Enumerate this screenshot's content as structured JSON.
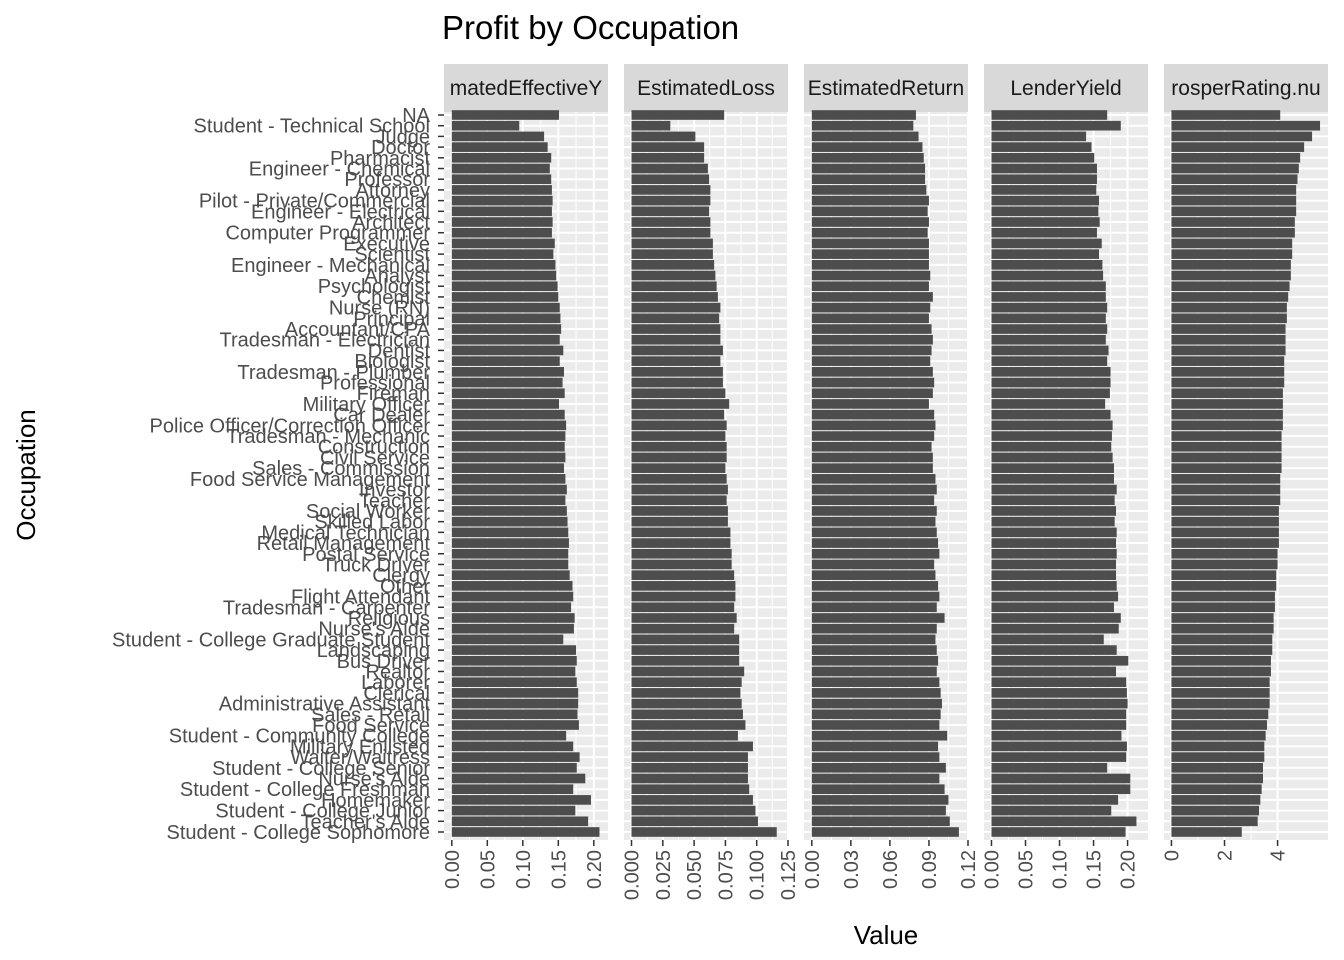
{
  "chart_data": {
    "type": "bar",
    "orientation": "horizontal",
    "title": "Profit by Occupation",
    "xlabel": "Value",
    "ylabel": "Occupation",
    "bar_color": "#4d4d4d",
    "panel_bg": "#ebebeb",
    "strip_bg": "#d9d9d9",
    "grid": true,
    "legend": "none",
    "categories": [
      "NA",
      "Student - Technical School",
      "Judge",
      "Doctor",
      "Pharmacist",
      "Engineer - Chemical",
      "Professor",
      "Attorney",
      "Pilot - Private/Commercial",
      "Engineer - Electrical",
      "Architect",
      "Computer Programmer",
      "Executive",
      "Scientist",
      "Engineer - Mechanical",
      "Analyst",
      "Psychologist",
      "Chemist",
      "Nurse (RN)",
      "Principal",
      "Accountant/CPA",
      "Tradesman - Electrician",
      "Dentist",
      "Biologist",
      "Tradesman - Plumber",
      "Professional",
      "Fireman",
      "Military Officer",
      "Car Dealer",
      "Police Officer/Correction Officer",
      "Tradesman - Mechanic",
      "Construction",
      "Civil Service",
      "Sales - Commission",
      "Food Service Management",
      "Investor",
      "Teacher",
      "Social Worker",
      "Skilled Labor",
      "Medical Technician",
      "Retail Management",
      "Postal Service",
      "Truck Driver",
      "Clergy",
      "Other",
      "Flight Attendant",
      "Tradesman - Carpenter",
      "Religious",
      "Nurse's Aide",
      "Student - College Graduate Student",
      "Landscaping",
      "Bus Driver",
      "Realtor",
      "Laborer",
      "Clerical",
      "Administrative Assistant",
      "Sales - Retail",
      "Food Service",
      "Student - Community College",
      "Military Enlisted",
      "Waiter/Waitress",
      "Student - College Senior",
      "Nurse's Aide",
      "Student - College Freshman",
      "Homemaker",
      "Student - College Junior",
      "Teacher's Aide",
      "Student - College Sophomore"
    ],
    "series": [
      {
        "name": "EstimatedEffectiveYield",
        "strip": "matedEffectiveY",
        "xlim": [
          -0.011,
          0.22
        ],
        "ticks": [
          "0.00",
          "0.05",
          "0.10",
          "0.15",
          "0.20"
        ],
        "tick_values": [
          0,
          0.05,
          0.1,
          0.15,
          0.2
        ],
        "values": [
          0.151,
          0.095,
          0.13,
          0.135,
          0.14,
          0.138,
          0.14,
          0.141,
          0.142,
          0.141,
          0.142,
          0.141,
          0.145,
          0.143,
          0.146,
          0.147,
          0.149,
          0.15,
          0.152,
          0.153,
          0.154,
          0.152,
          0.157,
          0.152,
          0.158,
          0.156,
          0.159,
          0.151,
          0.159,
          0.161,
          0.16,
          0.159,
          0.16,
          0.158,
          0.16,
          0.162,
          0.16,
          0.162,
          0.163,
          0.164,
          0.165,
          0.164,
          0.164,
          0.166,
          0.17,
          0.171,
          0.168,
          0.173,
          0.172,
          0.157,
          0.175,
          0.176,
          0.174,
          0.176,
          0.178,
          0.178,
          0.177,
          0.179,
          0.161,
          0.171,
          0.18,
          0.176,
          0.188,
          0.171,
          0.196,
          0.174,
          0.192,
          0.208
        ]
      },
      {
        "name": "EstimatedLoss",
        "strip": "EstimatedLoss",
        "xlim": [
          -0.006,
          0.125
        ],
        "ticks": [
          "0.000",
          "0.025",
          "0.050",
          "0.075",
          "0.100",
          "0.125"
        ],
        "tick_values": [
          0,
          0.025,
          0.05,
          0.075,
          0.1,
          0.125
        ],
        "values": [
          0.074,
          0.031,
          0.051,
          0.058,
          0.058,
          0.061,
          0.062,
          0.063,
          0.063,
          0.062,
          0.063,
          0.063,
          0.065,
          0.065,
          0.066,
          0.067,
          0.068,
          0.069,
          0.071,
          0.07,
          0.071,
          0.071,
          0.073,
          0.071,
          0.073,
          0.073,
          0.075,
          0.078,
          0.074,
          0.076,
          0.075,
          0.076,
          0.076,
          0.075,
          0.076,
          0.077,
          0.076,
          0.077,
          0.077,
          0.079,
          0.079,
          0.08,
          0.08,
          0.082,
          0.083,
          0.083,
          0.082,
          0.084,
          0.082,
          0.086,
          0.086,
          0.086,
          0.09,
          0.088,
          0.087,
          0.088,
          0.089,
          0.091,
          0.085,
          0.097,
          0.093,
          0.093,
          0.093,
          0.094,
          0.097,
          0.099,
          0.101,
          0.116
        ]
      },
      {
        "name": "EstimatedReturn",
        "strip": "EstimatedReturn",
        "xlim": [
          -0.006,
          0.12
        ],
        "ticks": [
          "0.00",
          "0.03",
          "0.06",
          "0.09",
          "0.12"
        ],
        "tick_values": [
          0,
          0.03,
          0.06,
          0.09,
          0.12
        ],
        "values": [
          0.08,
          0.078,
          0.082,
          0.085,
          0.086,
          0.087,
          0.087,
          0.088,
          0.09,
          0.089,
          0.09,
          0.089,
          0.09,
          0.09,
          0.09,
          0.091,
          0.09,
          0.093,
          0.091,
          0.09,
          0.092,
          0.093,
          0.092,
          0.091,
          0.093,
          0.094,
          0.093,
          0.09,
          0.094,
          0.095,
          0.094,
          0.092,
          0.093,
          0.093,
          0.095,
          0.096,
          0.094,
          0.096,
          0.095,
          0.096,
          0.097,
          0.098,
          0.094,
          0.095,
          0.097,
          0.098,
          0.096,
          0.102,
          0.096,
          0.095,
          0.096,
          0.097,
          0.096,
          0.098,
          0.099,
          0.1,
          0.099,
          0.098,
          0.104,
          0.097,
          0.098,
          0.103,
          0.098,
          0.102,
          0.105,
          0.103,
          0.106,
          0.113
        ]
      },
      {
        "name": "LenderYield",
        "strip": "LenderYield",
        "xlim": [
          -0.011,
          0.23
        ],
        "ticks": [
          "0.00",
          "0.05",
          "0.10",
          "0.15",
          "0.20"
        ],
        "tick_values": [
          0,
          0.05,
          0.1,
          0.15,
          0.2
        ],
        "values": [
          0.17,
          0.19,
          0.139,
          0.147,
          0.151,
          0.155,
          0.155,
          0.154,
          0.158,
          0.157,
          0.159,
          0.155,
          0.162,
          0.158,
          0.163,
          0.164,
          0.168,
          0.168,
          0.17,
          0.168,
          0.17,
          0.168,
          0.172,
          0.17,
          0.175,
          0.175,
          0.174,
          0.167,
          0.175,
          0.178,
          0.177,
          0.176,
          0.178,
          0.18,
          0.18,
          0.184,
          0.181,
          0.183,
          0.181,
          0.184,
          0.183,
          0.184,
          0.183,
          0.183,
          0.184,
          0.186,
          0.18,
          0.19,
          0.187,
          0.165,
          0.184,
          0.201,
          0.183,
          0.198,
          0.199,
          0.2,
          0.198,
          0.198,
          0.191,
          0.199,
          0.198,
          0.17,
          0.204,
          0.204,
          0.186,
          0.176,
          0.213,
          0.197
        ]
      },
      {
        "name": "ProsperRating.numeric",
        "strip": "rosperRating.nu",
        "xlim": [
          -0.28,
          5.9
        ],
        "ticks": [
          "0",
          "2",
          "4"
        ],
        "tick_values": [
          0,
          2,
          4
        ],
        "values": [
          4.1,
          5.6,
          5.3,
          5.0,
          4.85,
          4.8,
          4.75,
          4.7,
          4.7,
          4.7,
          4.65,
          4.65,
          4.55,
          4.55,
          4.5,
          4.5,
          4.45,
          4.4,
          4.35,
          4.35,
          4.3,
          4.3,
          4.3,
          4.25,
          4.25,
          4.25,
          4.2,
          4.2,
          4.2,
          4.2,
          4.15,
          4.15,
          4.15,
          4.15,
          4.1,
          4.1,
          4.1,
          4.05,
          4.05,
          4.05,
          4.05,
          4.0,
          4.0,
          3.95,
          3.95,
          3.9,
          3.9,
          3.85,
          3.85,
          3.8,
          3.8,
          3.75,
          3.75,
          3.7,
          3.7,
          3.7,
          3.65,
          3.6,
          3.55,
          3.5,
          3.5,
          3.45,
          3.45,
          3.4,
          3.35,
          3.3,
          3.25,
          2.65
        ]
      }
    ]
  }
}
